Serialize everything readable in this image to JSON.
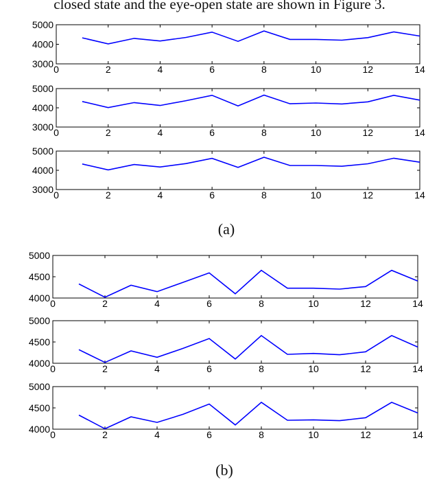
{
  "top_text": "closed state and the eye-open state are shown in Figure 3.",
  "captions": {
    "a": "(a)",
    "b": "(b)"
  },
  "colors": {
    "line": "#0000ff",
    "axes": "#000000"
  },
  "chart_data": [
    {
      "type": "line",
      "group": "a",
      "x": [
        1,
        2,
        3,
        4,
        5,
        6,
        7,
        8,
        9,
        10,
        11,
        12,
        13,
        14
      ],
      "series": [
        {
          "values": [
            4330,
            4020,
            4300,
            4170,
            4350,
            4620,
            4150,
            4680,
            4250,
            4250,
            4210,
            4340,
            4630,
            4420
          ]
        }
      ],
      "xlim": [
        0,
        14
      ],
      "ylim": [
        3000,
        5000
      ],
      "xticks": [
        0,
        2,
        4,
        6,
        8,
        10,
        12,
        14
      ],
      "yticks": [
        3000,
        4000,
        5000
      ]
    },
    {
      "type": "line",
      "group": "a",
      "x": [
        1,
        2,
        3,
        4,
        5,
        6,
        7,
        8,
        9,
        10,
        11,
        12,
        13,
        14
      ],
      "series": [
        {
          "values": [
            4330,
            4010,
            4270,
            4120,
            4370,
            4650,
            4100,
            4660,
            4210,
            4250,
            4200,
            4310,
            4650,
            4400
          ]
        }
      ],
      "xlim": [
        0,
        14
      ],
      "ylim": [
        3000,
        5000
      ],
      "xticks": [
        0,
        2,
        4,
        6,
        8,
        10,
        12,
        14
      ],
      "yticks": [
        3000,
        4000,
        5000
      ]
    },
    {
      "type": "line",
      "group": "a",
      "x": [
        1,
        2,
        3,
        4,
        5,
        6,
        7,
        8,
        9,
        10,
        11,
        12,
        13,
        14
      ],
      "series": [
        {
          "values": [
            4330,
            4020,
            4300,
            4170,
            4350,
            4620,
            4150,
            4680,
            4250,
            4250,
            4210,
            4340,
            4630,
            4420
          ]
        }
      ],
      "xlim": [
        0,
        14
      ],
      "ylim": [
        3000,
        5000
      ],
      "xticks": [
        0,
        2,
        4,
        6,
        8,
        10,
        12,
        14
      ],
      "yticks": [
        3000,
        4000,
        5000
      ]
    },
    {
      "type": "line",
      "group": "b",
      "x": [
        1,
        2,
        3,
        4,
        5,
        6,
        7,
        8,
        9,
        10,
        11,
        12,
        13,
        14
      ],
      "series": [
        {
          "values": [
            4330,
            4020,
            4300,
            4150,
            4370,
            4590,
            4100,
            4650,
            4230,
            4230,
            4210,
            4270,
            4650,
            4400
          ]
        }
      ],
      "xlim": [
        0,
        14
      ],
      "ylim": [
        4000,
        5000
      ],
      "xticks": [
        0,
        2,
        4,
        6,
        8,
        10,
        12,
        14
      ],
      "yticks": [
        4000,
        4500,
        5000
      ]
    },
    {
      "type": "line",
      "group": "b",
      "x": [
        1,
        2,
        3,
        4,
        5,
        6,
        7,
        8,
        9,
        10,
        11,
        12,
        13,
        14
      ],
      "series": [
        {
          "values": [
            4320,
            4020,
            4290,
            4140,
            4350,
            4580,
            4100,
            4650,
            4210,
            4230,
            4200,
            4270,
            4650,
            4380
          ]
        }
      ],
      "xlim": [
        0,
        14
      ],
      "ylim": [
        4000,
        5000
      ],
      "xticks": [
        0,
        2,
        4,
        6,
        8,
        10,
        12,
        14
      ],
      "yticks": [
        4000,
        4500,
        5000
      ]
    },
    {
      "type": "line",
      "group": "b",
      "x": [
        1,
        2,
        3,
        4,
        5,
        6,
        7,
        8,
        9,
        10,
        11,
        12,
        13,
        14
      ],
      "series": [
        {
          "values": [
            4330,
            4010,
            4290,
            4160,
            4350,
            4590,
            4100,
            4630,
            4210,
            4220,
            4200,
            4270,
            4630,
            4380
          ]
        }
      ],
      "xlim": [
        0,
        14
      ],
      "ylim": [
        4000,
        5000
      ],
      "xticks": [
        0,
        2,
        4,
        6,
        8,
        10,
        12,
        14
      ],
      "yticks": [
        4000,
        4500,
        5000
      ]
    }
  ]
}
